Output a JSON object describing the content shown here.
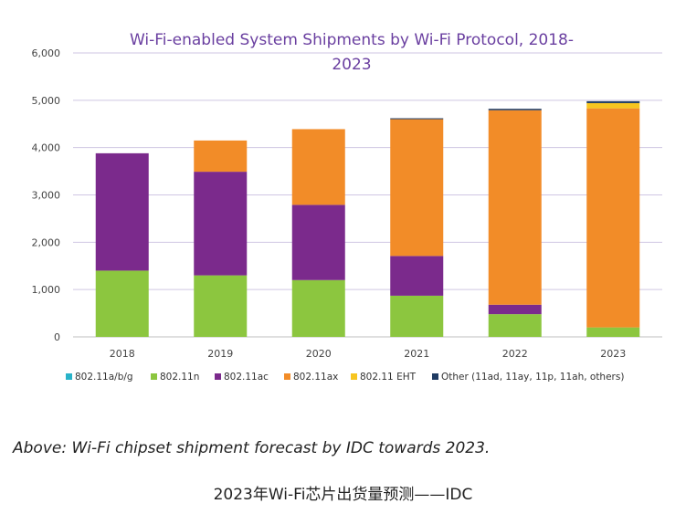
{
  "chart_data": {
    "type": "bar",
    "stacked": true,
    "title": "Wi-Fi-enabled System Shipments by Wi-Fi Protocol, 2018-2023",
    "title_lines": [
      "Wi-Fi-enabled System Shipments by Wi-Fi Protocol, 2018-",
      "2023"
    ],
    "categories": [
      "2018",
      "2019",
      "2020",
      "2021",
      "2022",
      "2023"
    ],
    "ylim": [
      0,
      6000
    ],
    "yticks": [
      "0",
      "1,000",
      "2,000",
      "3,000",
      "4,000",
      "5,000",
      "6,000"
    ],
    "ytick_values": [
      0,
      1000,
      2000,
      3000,
      4000,
      5000,
      6000
    ],
    "grid": true,
    "legend_position": "bottom",
    "series": [
      {
        "name": "802.11a/b/g",
        "color": "#29b3c9",
        "values": [
          0,
          0,
          0,
          0,
          0,
          0
        ]
      },
      {
        "name": "802.11n",
        "color": "#8cc63f",
        "values": [
          1400,
          1300,
          1200,
          870,
          480,
          200
        ]
      },
      {
        "name": "802.11ac",
        "color": "#7b2a8c",
        "values": [
          2480,
          2190,
          1590,
          840,
          200,
          0
        ]
      },
      {
        "name": "802.11ax",
        "color": "#f28c28",
        "values": [
          0,
          660,
          1600,
          2890,
          4110,
          4630
        ]
      },
      {
        "name": "802.11 EHT",
        "color": "#f7c520",
        "values": [
          0,
          0,
          0,
          0,
          0,
          110
        ]
      },
      {
        "name": "Other (11ad, 11ay, 11p, 11ah, others)",
        "color": "#1f3b63",
        "values": [
          0,
          0,
          0,
          20,
          30,
          40
        ]
      }
    ]
  },
  "caption": "Above: Wi-Fi chipset shipment forecast by IDC towards 2023.",
  "subcaption": "2023年Wi-Fi芯片出货量预测——IDC"
}
